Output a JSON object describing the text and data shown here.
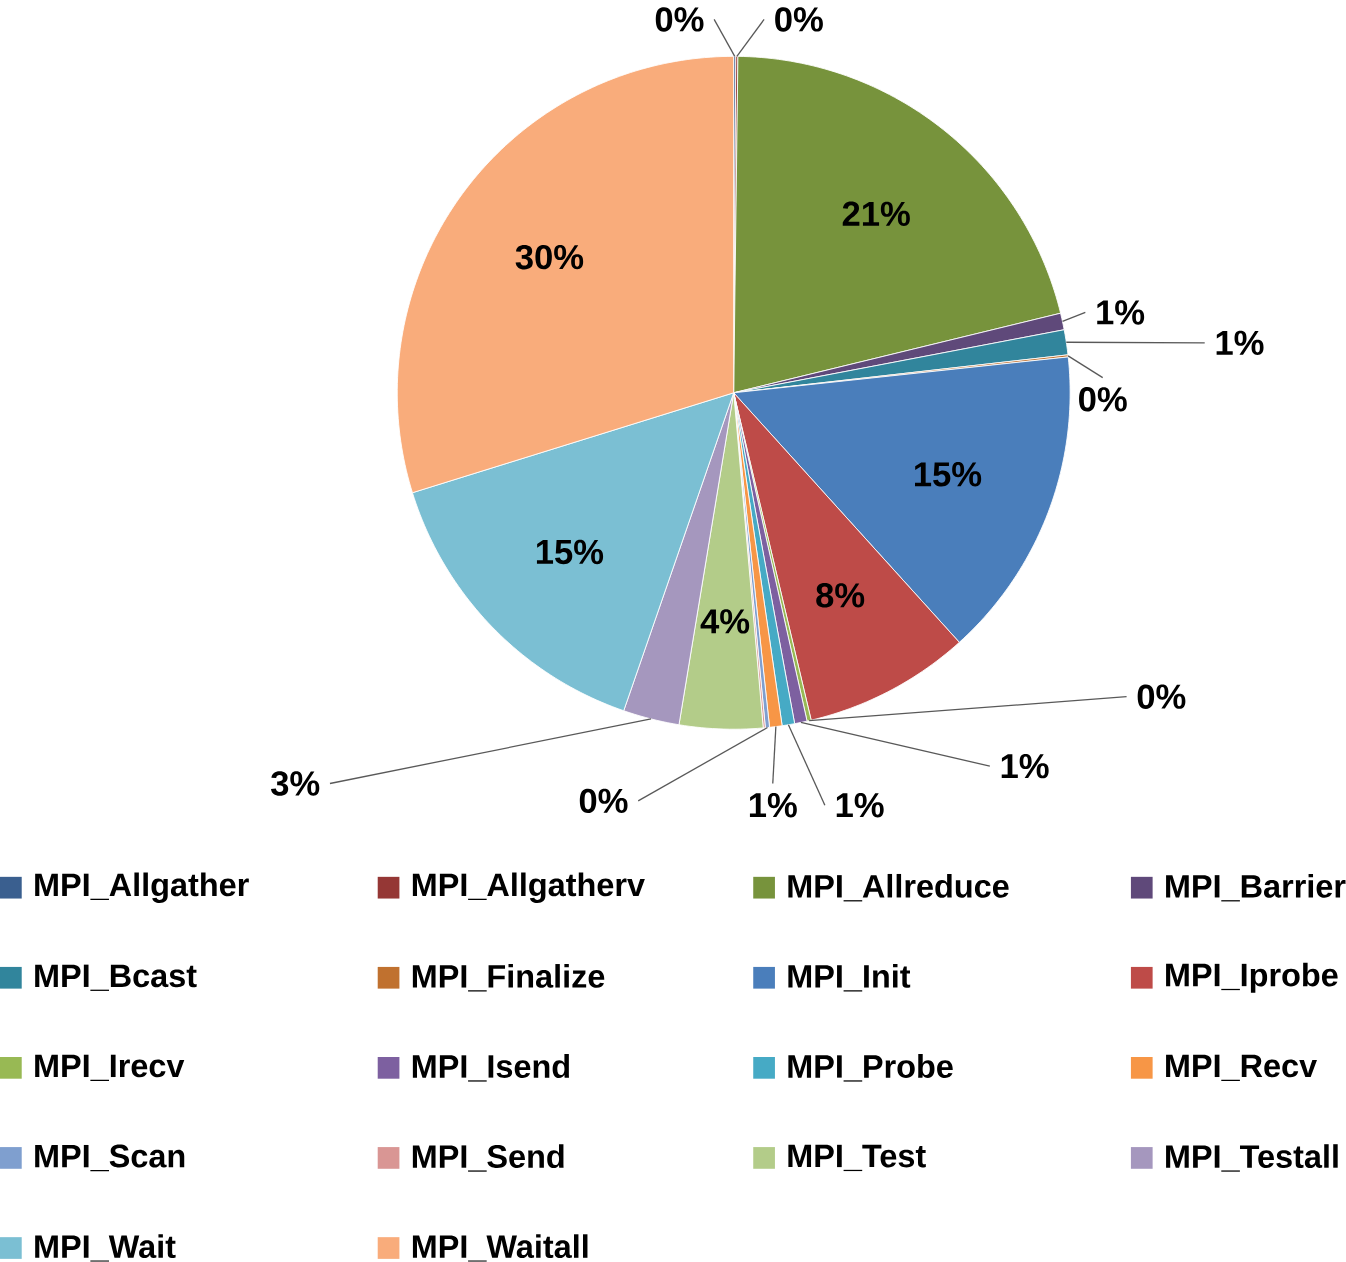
{
  "chart_data": {
    "type": "pie",
    "categories": [
      "MPI_Allgather",
      "MPI_Allgatherv",
      "MPI_Allreduce",
      "MPI_Barrier",
      "MPI_Bcast",
      "MPI_Finalize",
      "MPI_Init",
      "MPI_Iprobe",
      "MPI_Irecv",
      "MPI_Isend",
      "MPI_Probe",
      "MPI_Recv",
      "MPI_Scan",
      "MPI_Send",
      "MPI_Test",
      "MPI_Testall",
      "MPI_Wait",
      "MPI_Waitall"
    ],
    "values": [
      0.1,
      0.1,
      21,
      0.8,
      1.2,
      0.1,
      15,
      8,
      0.2,
      0.6,
      0.6,
      0.6,
      0.2,
      0.1,
      4,
      2.7,
      14.9,
      29.8
    ],
    "value_labels": [
      "0%",
      "0%",
      "21%",
      "1%",
      "1%",
      "0%",
      "15%",
      "8%",
      "0%",
      "1%",
      "1%",
      "1%",
      "0%",
      null,
      "4%",
      "3%",
      "15%",
      "30%"
    ],
    "colors": [
      "#3a5f8f",
      "#953735",
      "#77933c",
      "#5f497a",
      "#31859c",
      "#c0712f",
      "#4a7ebb",
      "#be4b48",
      "#98b954",
      "#7d60a0",
      "#46aac5",
      "#f79646",
      "#7f9fcf",
      "#d99694",
      "#b3cc89",
      "#a597be",
      "#7bbfd3",
      "#f9ac7b"
    ],
    "legend": "bottom"
  }
}
